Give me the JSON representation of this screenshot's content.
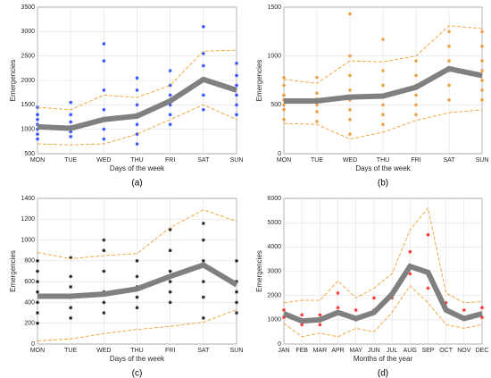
{
  "chart_data": [
    {
      "type": "line",
      "panel": "(a)",
      "xlabel": "Days of the week",
      "ylabel": "Emergencies",
      "categories": [
        "MON",
        "TUE",
        "WED",
        "THU",
        "FRI",
        "SAT",
        "SUN"
      ],
      "ylim": [
        500,
        3500
      ],
      "yticks": [
        500,
        1000,
        1500,
        2000,
        2500,
        3000,
        3500
      ],
      "mean": {
        "color": "#808080",
        "values": [
          1050,
          1020,
          1200,
          1270,
          1580,
          2020,
          1800
        ]
      },
      "upper": {
        "color": "#f0a030",
        "values": [
          1450,
          1400,
          1700,
          1650,
          1900,
          2600,
          2620
        ]
      },
      "lower": {
        "color": "#f0a030",
        "values": [
          700,
          680,
          700,
          900,
          1200,
          1500,
          1200
        ]
      },
      "points": {
        "color": "#1f3fff",
        "values": [
          [
            800,
            900,
            1000,
            1100,
            1200,
            1300,
            1450
          ],
          [
            850,
            950,
            1050,
            1150,
            1300,
            1550
          ],
          [
            800,
            1000,
            1200,
            1400,
            1800,
            2400,
            2750
          ],
          [
            700,
            900,
            1100,
            1300,
            1500,
            1800,
            2050
          ],
          [
            1100,
            1300,
            1500,
            1700,
            1900,
            2200
          ],
          [
            1400,
            1700,
            2000,
            2300,
            2550,
            3100
          ],
          [
            1300,
            1500,
            1700,
            1900,
            2100,
            2350
          ]
        ]
      }
    },
    {
      "type": "line",
      "panel": "(b)",
      "xlabel": "Days of the week",
      "ylabel": "Emergencies",
      "categories": [
        "MON",
        "TUE",
        "WED",
        "THU",
        "FRI",
        "SAT",
        "SUN"
      ],
      "ylim": [
        0,
        1500
      ],
      "yticks": [
        0,
        500,
        1000,
        1500
      ],
      "mean": {
        "color": "#808080",
        "values": [
          540,
          540,
          580,
          590,
          680,
          870,
          800
        ]
      },
      "upper": {
        "color": "#f0a030",
        "values": [
          760,
          720,
          950,
          940,
          1000,
          1310,
          1280
        ]
      },
      "lower": {
        "color": "#f0a030",
        "values": [
          310,
          300,
          150,
          220,
          340,
          420,
          450
        ]
      },
      "points": {
        "color": "#e8962e",
        "values": [
          [
            350,
            450,
            500,
            550,
            600,
            700,
            780
          ],
          [
            330,
            430,
            500,
            560,
            620,
            780
          ],
          [
            200,
            350,
            450,
            550,
            650,
            800,
            1000,
            1430
          ],
          [
            300,
            400,
            500,
            600,
            700,
            850,
            1170
          ],
          [
            400,
            500,
            600,
            700,
            800,
            950
          ],
          [
            550,
            700,
            850,
            950,
            1100,
            1250
          ],
          [
            550,
            650,
            750,
            850,
            950,
            1100,
            1250
          ]
        ]
      }
    },
    {
      "type": "line",
      "panel": "(c)",
      "xlabel": "Days of the week",
      "ylabel": "Emergencies",
      "categories": [
        "MON",
        "TUE",
        "WED",
        "THU",
        "FRI",
        "SAT",
        "SUN"
      ],
      "ylim": [
        0,
        1400
      ],
      "yticks": [
        0,
        200,
        400,
        600,
        800,
        1000,
        1200,
        1400
      ],
      "mean": {
        "color": "#808080",
        "values": [
          460,
          460,
          480,
          530,
          650,
          760,
          570
        ]
      },
      "upper": {
        "color": "#f0a030",
        "values": [
          880,
          820,
          850,
          870,
          1120,
          1290,
          1180
        ]
      },
      "lower": {
        "color": "#f0a030",
        "values": [
          30,
          50,
          100,
          140,
          170,
          210,
          330
        ]
      },
      "points": {
        "color": "#111111",
        "values": [
          [
            200,
            300,
            400,
            500,
            600,
            700,
            800
          ],
          [
            250,
            350,
            450,
            550,
            650,
            830
          ],
          [
            300,
            400,
            500,
            700,
            900,
            1000
          ],
          [
            350,
            450,
            550,
            650,
            800
          ],
          [
            400,
            500,
            600,
            700,
            900,
            1100
          ],
          [
            250,
            450,
            600,
            800,
            1000,
            1160
          ],
          [
            300,
            400,
            500,
            600,
            800
          ]
        ]
      }
    },
    {
      "type": "line",
      "panel": "(d)",
      "xlabel": "Months of the year",
      "ylabel": "Emergencies",
      "categories": [
        "JAN",
        "FEB",
        "MAR",
        "APR",
        "MAY",
        "JUN",
        "JUL",
        "AUG",
        "SEP",
        "OCT",
        "NOV",
        "DEC"
      ],
      "ylim": [
        0,
        6000
      ],
      "yticks": [
        0,
        1000,
        2000,
        3000,
        4000,
        5000,
        6000
      ],
      "mean": {
        "color": "#808080",
        "values": [
          1250,
          950,
          1000,
          1300,
          1050,
          1300,
          2050,
          3200,
          2950,
          1400,
          1050,
          1250
        ]
      },
      "upper": {
        "color": "#f0a030",
        "values": [
          1700,
          1800,
          1800,
          2600,
          1900,
          2300,
          2900,
          4700,
          5600,
          2100,
          1700,
          1750
        ]
      },
      "lower": {
        "color": "#f0a030",
        "values": [
          850,
          300,
          450,
          300,
          650,
          500,
          1300,
          2400,
          1700,
          800,
          650,
          800
        ]
      },
      "points": {
        "color": "#ff2020",
        "values": [
          [
            1100,
            1400
          ],
          [
            800,
            1200
          ],
          [
            800,
            1200
          ],
          [
            1500,
            2100
          ],
          [
            1000,
            1400
          ],
          [
            1400,
            1900
          ],
          [
            1900,
            2000
          ],
          [
            2900,
            3800
          ],
          [
            2300,
            4500
          ],
          [
            1500,
            1700
          ],
          [
            1100,
            1400
          ],
          [
            1100,
            1500
          ]
        ]
      }
    }
  ]
}
